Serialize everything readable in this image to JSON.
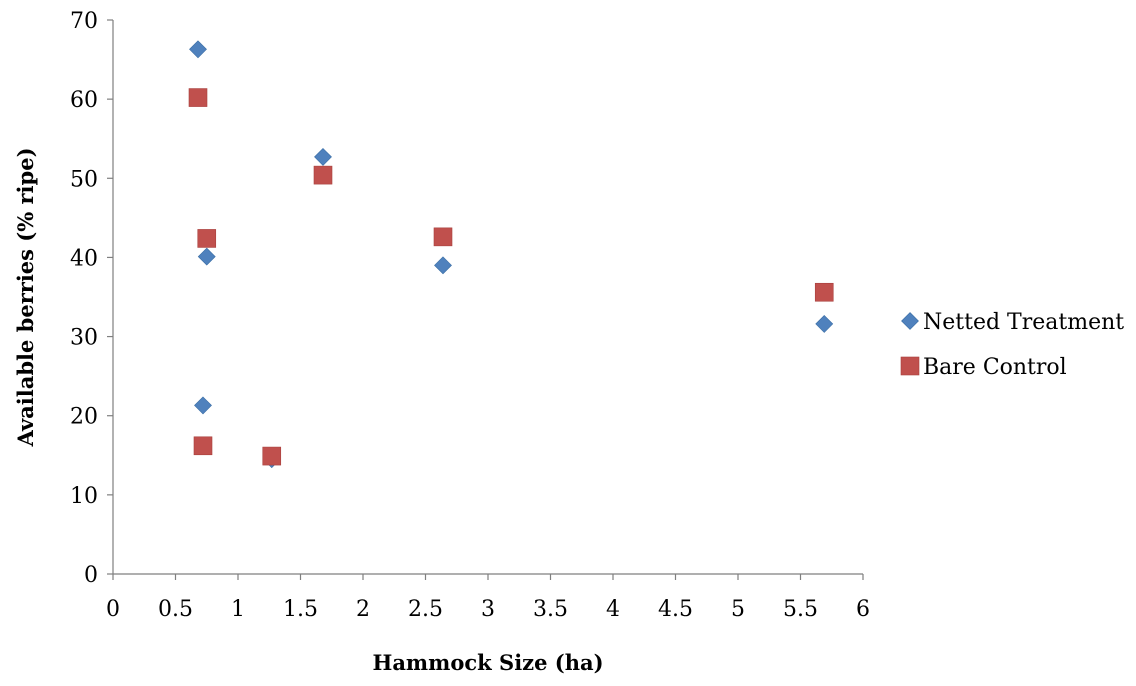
{
  "chart_data": {
    "type": "scatter",
    "title": "",
    "xlabel": "Hammock Size (ha)",
    "ylabel": "Available berries (% ripe)",
    "xlim": [
      0,
      6
    ],
    "ylim": [
      0,
      70
    ],
    "x_ticks": [
      "0",
      "0.5",
      "1",
      "1.5",
      "2",
      "2.5",
      "3",
      "3.5",
      "4",
      "4.5",
      "5",
      "5.5",
      "6"
    ],
    "y_ticks": [
      "0",
      "10",
      "20",
      "30",
      "40",
      "50",
      "60",
      "70"
    ],
    "grid": false,
    "legend_position": "right",
    "series": [
      {
        "name": "Netted Treatment",
        "marker": "diamond",
        "color": "#4F81BD",
        "points": [
          {
            "x": 0.68,
            "y": 66.3
          },
          {
            "x": 0.75,
            "y": 40.1
          },
          {
            "x": 0.72,
            "y": 21.3
          },
          {
            "x": 1.27,
            "y": 14.5
          },
          {
            "x": 1.68,
            "y": 52.7
          },
          {
            "x": 2.64,
            "y": 39.0
          },
          {
            "x": 5.69,
            "y": 31.6
          }
        ]
      },
      {
        "name": "Bare Control",
        "marker": "square",
        "color": "#C0504D",
        "points": [
          {
            "x": 0.68,
            "y": 60.2
          },
          {
            "x": 0.75,
            "y": 42.4
          },
          {
            "x": 0.72,
            "y": 16.2
          },
          {
            "x": 1.27,
            "y": 14.9
          },
          {
            "x": 1.68,
            "y": 50.4
          },
          {
            "x": 2.64,
            "y": 42.6
          },
          {
            "x": 5.69,
            "y": 35.6
          }
        ]
      }
    ]
  }
}
